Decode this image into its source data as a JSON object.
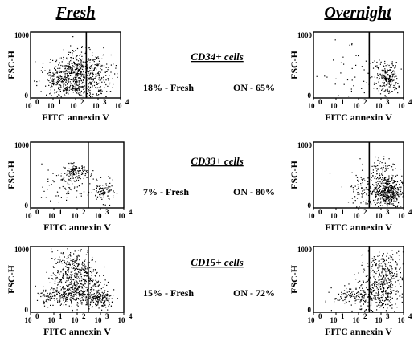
{
  "columns": {
    "fresh": "Fresh",
    "overnight": "Overnight"
  },
  "chart_data": {
    "type": "scatter",
    "xlabel": "FITC annexin V",
    "ylabel": "FSC-H",
    "x_scale": "log",
    "xlim": [
      1,
      10000
    ],
    "x_ticks": [
      "10",
      "10",
      "10",
      "10",
      "10"
    ],
    "x_tick_exponents": [
      "0",
      "1",
      "2",
      "3",
      "4"
    ],
    "ylim": [
      0,
      1000
    ],
    "y_ticks": [
      "0",
      "1000"
    ],
    "gate_x": 300,
    "rows": [
      {
        "population": "CD34+ cells",
        "fresh_label": "18% - Fresh",
        "overnight_label": "ON - 65%",
        "fresh_percent": 18,
        "overnight_percent": 65
      },
      {
        "population": "CD33+ cells",
        "fresh_label": "7% - Fresh",
        "overnight_label": "ON - 80%",
        "fresh_percent": 7,
        "overnight_percent": 80
      },
      {
        "population": "CD15+ cells",
        "fresh_label": "15% - Fresh",
        "overnight_label": "ON - 72%",
        "fresh_percent": 15,
        "overnight_percent": 72
      }
    ]
  }
}
